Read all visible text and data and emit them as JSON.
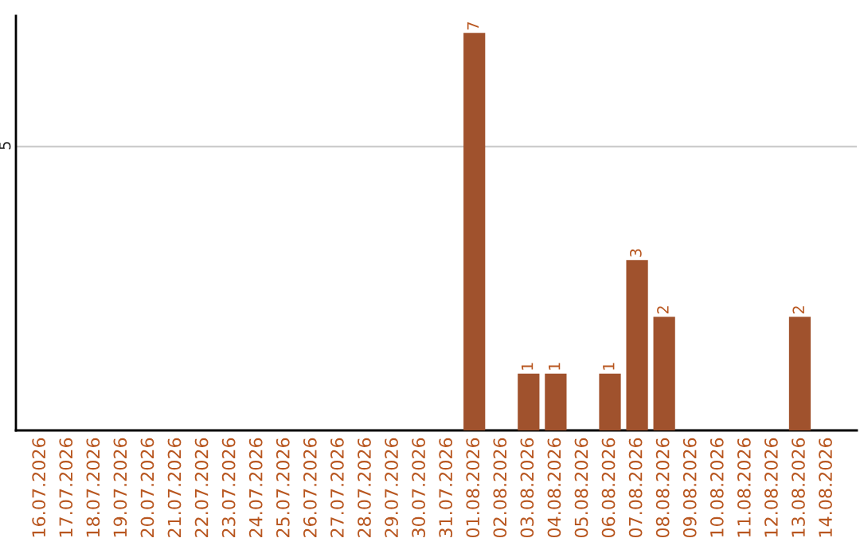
{
  "chart_data": {
    "type": "bar",
    "categories": [
      "16.07.2026",
      "17.07.2026",
      "18.07.2026",
      "19.07.2026",
      "20.07.2026",
      "21.07.2026",
      "22.07.2026",
      "23.07.2026",
      "24.07.2026",
      "25.07.2026",
      "26.07.2026",
      "27.07.2026",
      "28.07.2026",
      "29.07.2026",
      "30.07.2026",
      "31.07.2026",
      "01.08.2026",
      "02.08.2026",
      "03.08.2026",
      "04.08.2026",
      "05.08.2026",
      "06.08.2026",
      "07.08.2026",
      "08.08.2026",
      "09.08.2026",
      "10.08.2026",
      "11.08.2026",
      "12.08.2026",
      "13.08.2026",
      "14.08.2026"
    ],
    "values": [
      null,
      null,
      null,
      null,
      null,
      null,
      null,
      null,
      null,
      null,
      null,
      null,
      null,
      null,
      null,
      null,
      7,
      null,
      1,
      1,
      null,
      1,
      3,
      2,
      null,
      null,
      null,
      null,
      2,
      null
    ],
    "value_labels": [
      null,
      null,
      null,
      null,
      null,
      null,
      null,
      null,
      null,
      null,
      null,
      null,
      null,
      null,
      null,
      null,
      "7",
      null,
      "1",
      "1",
      null,
      "1",
      "3",
      "2",
      null,
      null,
      null,
      null,
      "2",
      null
    ],
    "color": "#a0522d",
    "ylim": [
      0,
      7.3
    ],
    "yticks": [
      5
    ],
    "grid": "y"
  }
}
